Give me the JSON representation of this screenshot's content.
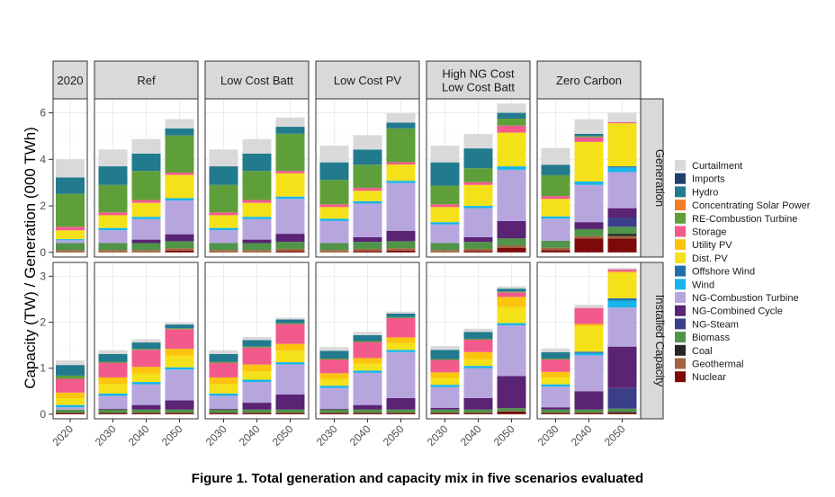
{
  "caption": "Figure 1. Total generation and capacity mix in five scenarios evaluated",
  "chart_data": {
    "type": "bar",
    "stacked": true,
    "ylabel": "Capacity (TW) / Generation (000 TWh)",
    "row_labels": [
      "Generation",
      "Installed Capacity"
    ],
    "panel_titles": [
      "2020",
      "Ref",
      "Low Cost Batt",
      "Low Cost PV",
      "High NG Cost\nLow Cost Batt",
      "Zero Carbon"
    ],
    "yaxis": {
      "generation": {
        "ylim": [
          -0.2,
          6.6
        ],
        "ticks": [
          "0",
          "2",
          "4",
          "6"
        ],
        "tick_values": [
          0,
          2,
          4,
          6
        ]
      },
      "capacity": {
        "ylim": [
          -0.1,
          3.3
        ],
        "ticks": [
          "0",
          "1",
          "2",
          "3"
        ],
        "tick_values": [
          0,
          1,
          2,
          3
        ]
      }
    },
    "legend": {
      "placement": "right",
      "entries": [
        {
          "name": "Curtailment",
          "color": "#d9d9d9"
        },
        {
          "name": "Imports",
          "color": "#1f3f6e"
        },
        {
          "name": "Hydro",
          "color": "#227a8f"
        },
        {
          "name": "Concentrating Solar Power",
          "color": "#f47c24"
        },
        {
          "name": "RE-Combustion Turbine",
          "color": "#5f9f3a"
        },
        {
          "name": "Storage",
          "color": "#f25a8c"
        },
        {
          "name": "Utility PV",
          "color": "#fcc40d"
        },
        {
          "name": "Dist. PV",
          "color": "#f4e11a"
        },
        {
          "name": "Offshore Wind",
          "color": "#1f6fad"
        },
        {
          "name": "Wind",
          "color": "#17b5ea"
        },
        {
          "name": "NG-Combustion Turbine",
          "color": "#b7a6de"
        },
        {
          "name": "NG-Combined Cycle",
          "color": "#5a2373"
        },
        {
          "name": "NG-Steam",
          "color": "#3b3f8a"
        },
        {
          "name": "Biomass",
          "color": "#4f9448"
        },
        {
          "name": "Coal",
          "color": "#262626"
        },
        {
          "name": "Geothermal",
          "color": "#a3643f"
        },
        {
          "name": "Nuclear",
          "color": "#7d0a0a"
        }
      ]
    },
    "panels": [
      {
        "title": "2020",
        "categories": [
          "2020"
        ],
        "generation": [
          [
            0.78,
            0,
            0.7,
            0,
            1.42,
            0.15,
            0,
            0.38,
            0,
            0.05,
            0.12,
            0,
            0,
            0.3,
            0,
            0.1,
            0
          ]
        ],
        "capacity": [
          [
            0.1,
            0,
            0.23,
            0,
            0.07,
            0.3,
            0.12,
            0.15,
            0,
            0.05,
            0.05,
            0,
            0,
            0.07,
            0,
            0,
            0.03
          ]
        ]
      },
      {
        "title": "Ref",
        "categories": [
          "2030",
          "2040",
          "2050"
        ],
        "generation": [
          [
            0.72,
            0,
            0.8,
            0,
            1.18,
            0.12,
            0,
            0.55,
            0,
            0.1,
            0.55,
            0,
            0,
            0.3,
            0,
            0.1,
            0
          ],
          [
            0.62,
            0,
            0.75,
            0,
            1.25,
            0.12,
            0,
            0.6,
            0,
            0.1,
            0.88,
            0.15,
            0,
            0.3,
            0,
            0.1,
            0
          ],
          [
            0.4,
            0,
            0.3,
            0,
            1.6,
            0.1,
            0,
            1.0,
            0,
            0.1,
            1.45,
            0.3,
            0,
            0.3,
            0,
            0.1,
            0.08
          ]
        ],
        "capacity": [
          [
            0.08,
            0,
            0.17,
            0,
            0.02,
            0.32,
            0.15,
            0.2,
            0,
            0.05,
            0.28,
            0.02,
            0,
            0.07,
            0,
            0,
            0.03
          ],
          [
            0.07,
            0,
            0.14,
            0,
            0.02,
            0.37,
            0.15,
            0.18,
            0,
            0.05,
            0.45,
            0.1,
            0,
            0.07,
            0,
            0,
            0.03
          ],
          [
            0.04,
            0,
            0.08,
            0,
            0.02,
            0.43,
            0.15,
            0.25,
            0,
            0.05,
            0.67,
            0.2,
            0,
            0.07,
            0,
            0,
            0.03
          ]
        ]
      },
      {
        "title": "Low Cost Batt",
        "categories": [
          "2030",
          "2040",
          "2050"
        ],
        "generation": [
          [
            0.72,
            0,
            0.8,
            0,
            1.18,
            0.12,
            0,
            0.55,
            0,
            0.1,
            0.55,
            0,
            0,
            0.3,
            0,
            0.1,
            0
          ],
          [
            0.62,
            0,
            0.75,
            0,
            1.25,
            0.12,
            0,
            0.6,
            0,
            0.1,
            0.88,
            0.15,
            0,
            0.3,
            0,
            0.1,
            0
          ],
          [
            0.4,
            0,
            0.3,
            0,
            1.6,
            0.1,
            0,
            1.0,
            0,
            0.1,
            1.5,
            0.35,
            0,
            0.3,
            0,
            0.1,
            0.05
          ]
        ],
        "capacity": [
          [
            0.08,
            0,
            0.17,
            0,
            0.02,
            0.32,
            0.15,
            0.2,
            0,
            0.05,
            0.28,
            0.02,
            0,
            0.07,
            0,
            0,
            0.03
          ],
          [
            0.07,
            0,
            0.14,
            0,
            0.02,
            0.37,
            0.15,
            0.18,
            0,
            0.05,
            0.45,
            0.15,
            0,
            0.07,
            0,
            0,
            0.03
          ],
          [
            0.04,
            0,
            0.08,
            0,
            0.02,
            0.43,
            0.15,
            0.25,
            0,
            0.05,
            0.65,
            0.33,
            0,
            0.07,
            0,
            0,
            0.03
          ]
        ]
      },
      {
        "title": "Low Cost PV",
        "categories": [
          "2030",
          "2040",
          "2050"
        ],
        "generation": [
          [
            0.72,
            0,
            0.75,
            0,
            1.05,
            0.12,
            0,
            0.5,
            0,
            0.1,
            0.95,
            0,
            0,
            0.3,
            0,
            0.1,
            0
          ],
          [
            0.62,
            0,
            0.65,
            0,
            1.0,
            0.12,
            0,
            0.45,
            0,
            0.1,
            1.45,
            0.2,
            0,
            0.3,
            0,
            0.1,
            0.05
          ],
          [
            0.4,
            0,
            0.25,
            0,
            1.45,
            0.1,
            0,
            0.7,
            0,
            0.1,
            2.05,
            0.45,
            0,
            0.3,
            0,
            0.1,
            0.08
          ]
        ],
        "capacity": [
          [
            0.08,
            0,
            0.17,
            0,
            0.02,
            0.3,
            0.12,
            0.15,
            0,
            0.05,
            0.45,
            0.02,
            0,
            0.07,
            0,
            0,
            0.03
          ],
          [
            0.07,
            0,
            0.13,
            0,
            0.02,
            0.35,
            0.12,
            0.15,
            0,
            0.05,
            0.7,
            0.1,
            0,
            0.07,
            0,
            0,
            0.03
          ],
          [
            0.04,
            0,
            0.08,
            0,
            0.02,
            0.42,
            0.12,
            0.15,
            0,
            0.05,
            1.0,
            0.25,
            0,
            0.07,
            0,
            0,
            0.03
          ]
        ]
      },
      {
        "title": "High NG Cost\nLow Cost Batt",
        "categories": [
          "2030",
          "2040",
          "2050"
        ],
        "generation": [
          [
            0.72,
            0,
            1.0,
            0,
            0.8,
            0.12,
            0,
            0.65,
            0,
            0.1,
            0.8,
            0,
            0,
            0.3,
            0,
            0.1,
            0
          ],
          [
            0.62,
            0,
            0.85,
            0,
            0.6,
            0.12,
            0,
            0.9,
            0,
            0.1,
            1.25,
            0.2,
            0,
            0.3,
            0,
            0.1,
            0.05
          ],
          [
            0.4,
            0,
            0.25,
            0,
            0.3,
            0.3,
            0,
            1.45,
            0,
            0.15,
            2.2,
            0.75,
            0,
            0.3,
            0,
            0.1,
            0.2
          ]
        ],
        "capacity": [
          [
            0.08,
            0,
            0.2,
            0,
            0.02,
            0.27,
            0.12,
            0.15,
            0,
            0.05,
            0.45,
            0.04,
            0,
            0.07,
            0,
            0,
            0.03
          ],
          [
            0.07,
            0,
            0.15,
            0,
            0.02,
            0.27,
            0.15,
            0.15,
            0,
            0.05,
            0.65,
            0.25,
            0,
            0.07,
            0,
            0,
            0.03
          ],
          [
            0.05,
            0,
            0.06,
            0,
            0.02,
            0.1,
            0.22,
            0.35,
            0,
            0.05,
            1.1,
            0.7,
            0,
            0.07,
            0,
            0,
            0.06
          ]
        ]
      },
      {
        "title": "Zero Carbon",
        "categories": [
          "2030",
          "2040",
          "2050"
        ],
        "generation": [
          [
            0.72,
            0,
            0.45,
            0,
            0.9,
            0.12,
            0,
            0.75,
            0,
            0.1,
            0.95,
            0,
            0,
            0.3,
            0,
            0.1,
            0.1
          ],
          [
            0.62,
            0,
            0.1,
            0,
            0.05,
            0.2,
            0,
            1.7,
            0,
            0.15,
            1.6,
            0.3,
            0,
            0.3,
            0,
            0.1,
            0.6
          ],
          [
            0.4,
            0,
            0,
            0,
            0,
            0.05,
            0,
            1.85,
            0.05,
            0.2,
            1.55,
            0.4,
            0.4,
            0.3,
            0.1,
            0.1,
            0.6
          ]
        ],
        "capacity": [
          [
            0.08,
            0,
            0.14,
            0,
            0.02,
            0.27,
            0.12,
            0.15,
            0,
            0.05,
            0.45,
            0.05,
            0,
            0.07,
            0,
            0,
            0.03
          ],
          [
            0.07,
            0,
            0,
            0,
            0,
            0.35,
            0.05,
            0.55,
            0.03,
            0.05,
            0.78,
            0.4,
            0,
            0.07,
            0,
            0,
            0.03
          ],
          [
            0.03,
            0,
            0,
            0,
            0,
            0.05,
            0.03,
            0.55,
            0.05,
            0.15,
            0.85,
            0.9,
            0.45,
            0.07,
            0.02,
            0,
            0.03
          ]
        ]
      }
    ]
  }
}
